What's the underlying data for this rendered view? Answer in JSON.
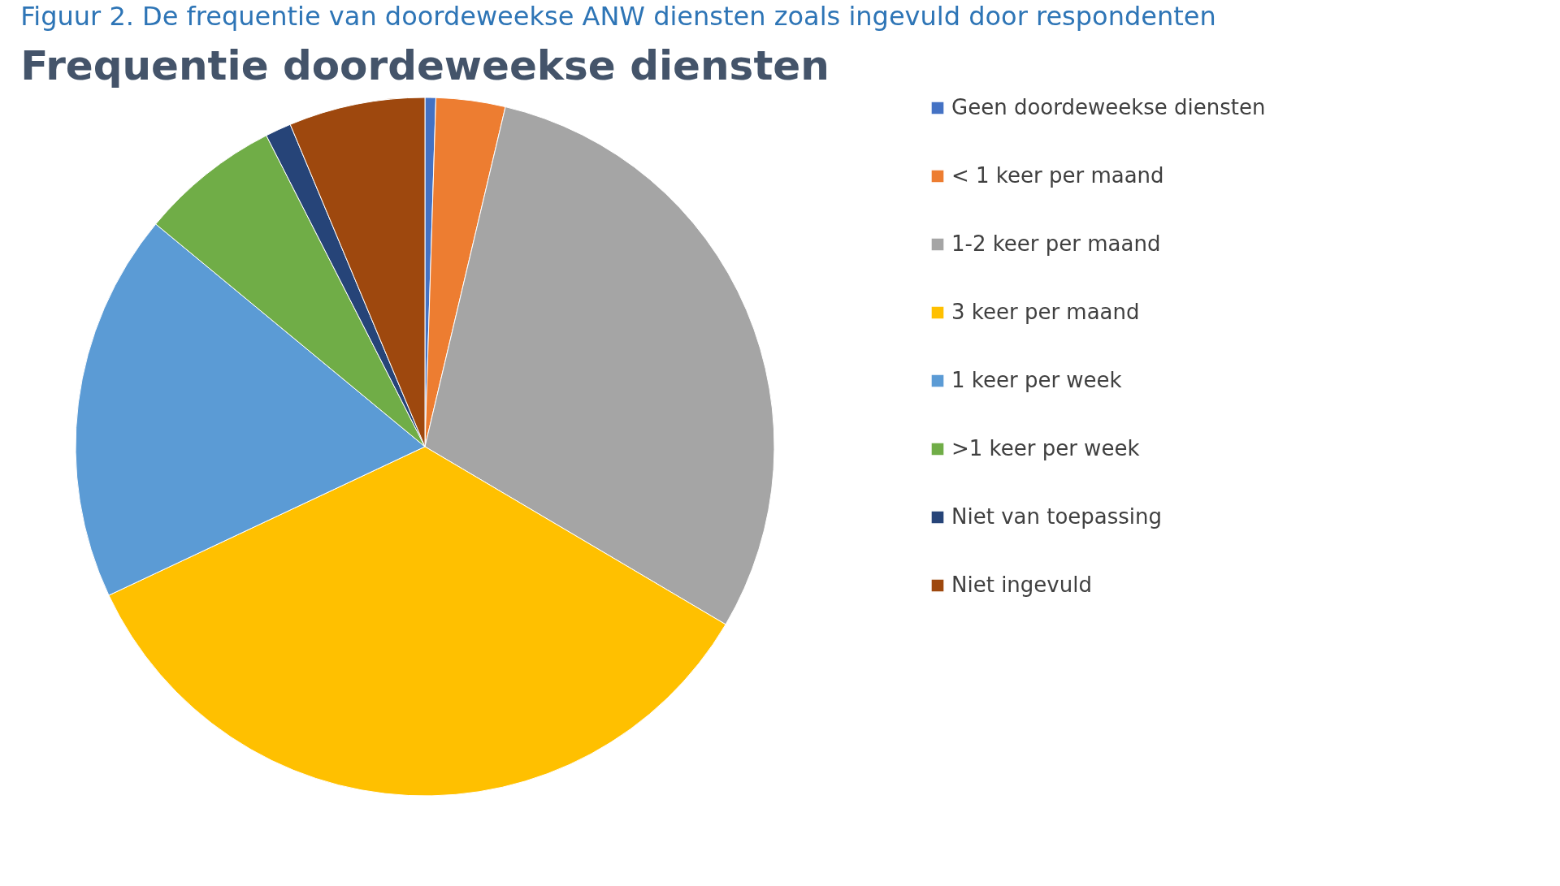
{
  "chart_data": {
    "type": "pie",
    "title": "Frequentie doordeweekse diensten",
    "annotations": [
      "Figuur 2.  De frequentie van doordeweekse ANW diensten zoals ingevuld door respondenten"
    ],
    "categories": [
      "Geen doordeweekse diensten",
      "< 1 keer per maand",
      "1-2 keer per maand",
      "3 keer per maand",
      "1 keer per week",
      ">1 keer per week",
      "Niet van toepassing",
      "Niet ingevuld"
    ],
    "values": [
      0.5,
      3.2,
      29.8,
      34.5,
      18,
      6.5,
      1.2,
      6.3
    ],
    "colors": [
      "#4472c4",
      "#ed7d31",
      "#a5a5a5",
      "#ffc000",
      "#5b9bd5",
      "#70ad47",
      "#264478",
      "#9e480e"
    ],
    "legend": "right"
  }
}
